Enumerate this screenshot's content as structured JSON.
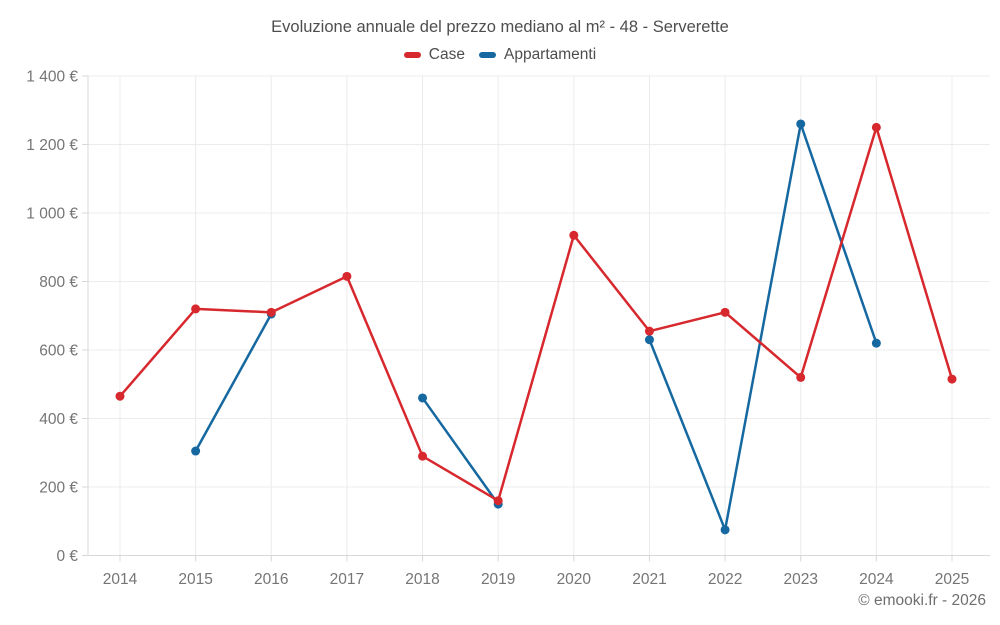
{
  "page": {
    "copyright": "© emooki.fr - 2026"
  },
  "chart_data": {
    "type": "line",
    "title": "Evoluzione annuale del prezzo mediano al m² - 48 - Serverette",
    "categories": [
      "2014",
      "2015",
      "2016",
      "2017",
      "2018",
      "2019",
      "2020",
      "2021",
      "2022",
      "2023",
      "2024",
      "2025"
    ],
    "series": [
      {
        "name": "Case",
        "color": "#d7282e",
        "values": [
          465,
          720,
          710,
          815,
          290,
          160,
          935,
          655,
          710,
          520,
          1250,
          515
        ]
      },
      {
        "name": "Appartamenti",
        "color": "#1668a1",
        "values": [
          null,
          305,
          705,
          null,
          460,
          150,
          null,
          630,
          75,
          1260,
          620,
          null
        ]
      }
    ],
    "y_axis": {
      "min": 0,
      "max": 1400,
      "tick_interval": 200,
      "tick_labels": [
        "0 €",
        "200 €",
        "400 €",
        "600 €",
        "800 €",
        "1 000 €",
        "1 200 €",
        "1 400 €"
      ],
      "unit": "€"
    },
    "x_axis": {
      "label": ""
    },
    "grid": true,
    "legend_position": "top",
    "xlabel": "",
    "ylabel": ""
  },
  "colors": {
    "grid_line": "#ececec",
    "axis_line": "#d8d8d8",
    "tick_label": "#757575",
    "title_text": "#4e4e4e"
  }
}
